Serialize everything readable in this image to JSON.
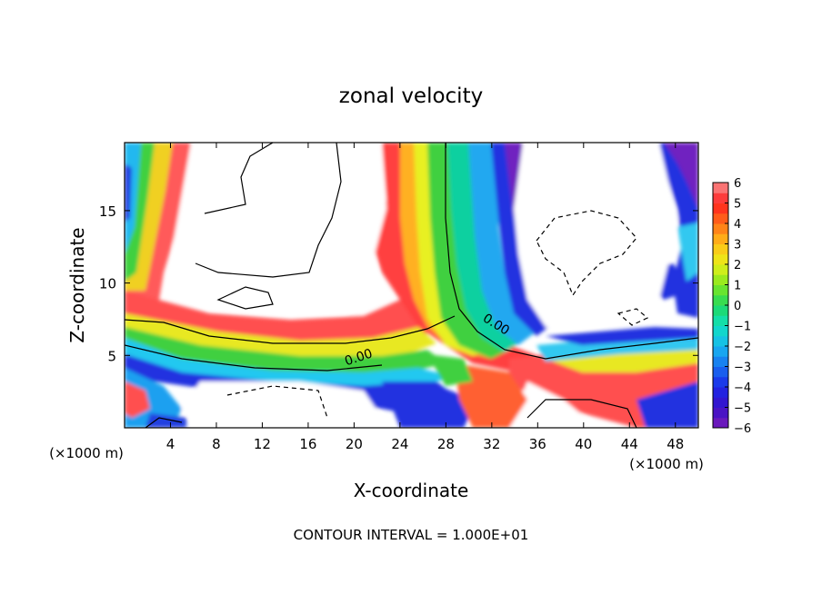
{
  "chart_data": {
    "type": "heatmap",
    "title": "zonal velocity",
    "xlabel": "X-coordinate",
    "ylabel": "Z-coordinate",
    "x_unit_left": "(×1000 m)",
    "x_unit_right": "(×1000 m)",
    "xlim": [
      0,
      50
    ],
    "ylim": [
      0,
      19.7
    ],
    "x_ticks": [
      4,
      8,
      12,
      16,
      20,
      24,
      28,
      32,
      36,
      40,
      44,
      48
    ],
    "y_ticks": [
      5,
      10,
      15
    ],
    "colorbar": {
      "range": [
        -6,
        6
      ],
      "tick_values": [
        6,
        5,
        4,
        3,
        2,
        1,
        0,
        -1,
        -2,
        -3,
        -4,
        -5,
        -6
      ],
      "tick_labels": [
        "6",
        "5",
        "4",
        "3",
        "2",
        "1",
        "0",
        "−1",
        "−2",
        "−3",
        "−4",
        "−5",
        "−6"
      ]
    },
    "contour_labels": [
      {
        "text": "0.00",
        "x": 20.5,
        "z": 4.6
      },
      {
        "text": "0.00",
        "x": 32.2,
        "z": 6.9
      }
    ],
    "footer": "CONTOUR INTERVAL = 1.000E+01",
    "grid": false
  }
}
